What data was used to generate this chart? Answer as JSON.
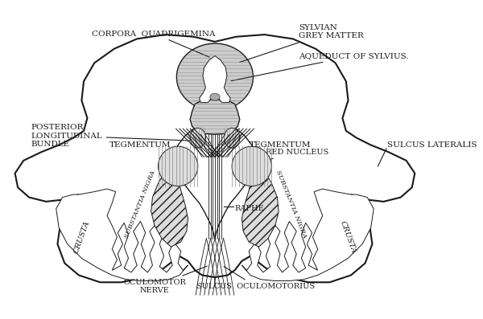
{
  "background_color": "#ffffff",
  "line_color": "#1a1a1a",
  "figsize": [
    6.0,
    3.97
  ],
  "dpi": 100,
  "labels": {
    "corpora_quadrigemina": "CORPORA  QUADRIGEMINA",
    "sylvian_grey": "SYLVIAN\nGREY MATTER",
    "aqueduct": "AQUEDUCT OF SYLVIUS.",
    "posterior_longitudinal": "POSTERIOR\nLONGITUDINAL\nBUNDLE",
    "tegmentum_left": "TEGMENTUM",
    "tegmentum_right": "TEGMENTUM",
    "sulcus_lateralis": "SULCUS LATERALIS",
    "red_nucleus": "RED NUCLEUS",
    "raphe": "RAPHE",
    "substantia_nigra_left": "SUBSTANTIA NIGRA",
    "substantia_nigra_right": "SUBSTANTIA NIGRA",
    "crusta_left": "CRUSTA",
    "crusta_right": "CRUSTA",
    "oculomotor": "OCULOMOTOR\nNERVE",
    "sulcus_oculo": "SULCUS  OCULOMOTORIUS"
  }
}
